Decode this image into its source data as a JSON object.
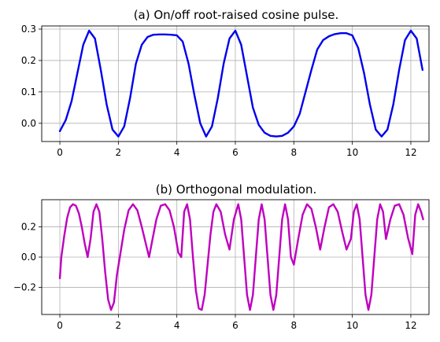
{
  "chart_data": [
    {
      "type": "line",
      "title": "(a) On/off root-raised cosine pulse.",
      "xlabel": "",
      "ylabel": "",
      "xlim": [
        -0.62,
        12.62
      ],
      "ylim": [
        -0.058,
        0.31
      ],
      "xticks": [
        0,
        2,
        4,
        6,
        8,
        10,
        12
      ],
      "yticks": [
        0.0,
        0.1,
        0.2,
        0.3
      ],
      "xtick_labels": [
        "0",
        "2",
        "4",
        "6",
        "8",
        "10",
        "12"
      ],
      "ytick_labels": [
        "0.0",
        "0.1",
        "0.2",
        "0.3"
      ],
      "grid": true,
      "color": "#0000ee",
      "series": [
        {
          "x": [
            0.0,
            0.2,
            0.4,
            0.6,
            0.8,
            1.0,
            1.2,
            1.4,
            1.6,
            1.8,
            2.0,
            2.2,
            2.4,
            2.6,
            2.8,
            3.0,
            3.2,
            3.4,
            3.6,
            3.8,
            4.0,
            4.2,
            4.4,
            4.6,
            4.8,
            5.0,
            5.2,
            5.4,
            5.6,
            5.8,
            6.0,
            6.2,
            6.4,
            6.6,
            6.8,
            7.0,
            7.2,
            7.4,
            7.6,
            7.8,
            8.0,
            8.2,
            8.4,
            8.6,
            8.8,
            9.0,
            9.2,
            9.4,
            9.6,
            9.8,
            10.0,
            10.2,
            10.4,
            10.6,
            10.8,
            11.0,
            11.2,
            11.4,
            11.6,
            11.8,
            12.0,
            12.2,
            12.4
          ],
          "y": [
            -0.025,
            0.01,
            0.07,
            0.16,
            0.25,
            0.295,
            0.27,
            0.17,
            0.06,
            -0.02,
            -0.042,
            -0.01,
            0.08,
            0.19,
            0.25,
            0.275,
            0.282,
            0.283,
            0.283,
            0.282,
            0.28,
            0.26,
            0.19,
            0.09,
            0.0,
            -0.042,
            -0.01,
            0.08,
            0.19,
            0.27,
            0.295,
            0.25,
            0.15,
            0.05,
            -0.005,
            -0.03,
            -0.04,
            -0.042,
            -0.04,
            -0.03,
            -0.01,
            0.03,
            0.1,
            0.17,
            0.235,
            0.265,
            0.277,
            0.284,
            0.287,
            0.287,
            0.28,
            0.24,
            0.16,
            0.06,
            -0.02,
            -0.042,
            -0.02,
            0.06,
            0.17,
            0.265,
            0.295,
            0.27,
            0.17
          ]
        }
      ]
    },
    {
      "type": "line",
      "title": "(b) Orthogonal modulation.",
      "xlabel": "",
      "ylabel": "",
      "xlim": [
        -0.62,
        12.62
      ],
      "ylim": [
        -0.38,
        0.38
      ],
      "xticks": [
        0,
        2,
        4,
        6,
        8,
        10,
        12
      ],
      "yticks": [
        -0.2,
        0.0,
        0.2
      ],
      "xtick_labels": [
        "0",
        "2",
        "4",
        "6",
        "8",
        "10",
        "12"
      ],
      "ytick_labels": [
        "−0.2",
        "0.0",
        "0.2"
      ],
      "grid": true,
      "color": "#bf00bf",
      "series": [
        {
          "x": [
            0.0,
            0.05,
            0.15,
            0.25,
            0.35,
            0.45,
            0.55,
            0.65,
            0.75,
            0.85,
            0.95,
            1.05,
            1.15,
            1.25,
            1.35,
            1.45,
            1.55,
            1.65,
            1.75,
            1.85,
            1.95,
            2.05,
            2.2,
            2.35,
            2.5,
            2.65,
            2.8,
            2.95,
            3.05,
            3.15,
            3.3,
            3.45,
            3.6,
            3.75,
            3.9,
            4.05,
            4.15,
            4.25,
            4.35,
            4.45,
            4.55,
            4.65,
            4.75,
            4.85,
            4.95,
            5.05,
            5.15,
            5.25,
            5.35,
            5.5,
            5.65,
            5.8,
            5.95,
            6.1,
            6.2,
            6.3,
            6.4,
            6.5,
            6.6,
            6.7,
            6.8,
            6.9,
            7.0,
            7.1,
            7.2,
            7.3,
            7.4,
            7.5,
            7.6,
            7.7,
            7.8,
            7.9,
            8.0,
            8.15,
            8.3,
            8.45,
            8.6,
            8.75,
            8.9,
            9.05,
            9.2,
            9.35,
            9.5,
            9.65,
            9.8,
            9.95,
            10.05,
            10.15,
            10.25,
            10.35,
            10.45,
            10.55,
            10.65,
            10.75,
            10.85,
            10.95,
            11.05,
            11.15,
            11.3,
            11.45,
            11.6,
            11.75,
            11.9,
            12.05,
            12.15,
            12.25,
            12.35,
            12.42
          ],
          "y": [
            -0.14,
            0.0,
            0.14,
            0.26,
            0.33,
            0.35,
            0.34,
            0.29,
            0.2,
            0.09,
            0.0,
            0.12,
            0.3,
            0.35,
            0.3,
            0.12,
            -0.1,
            -0.28,
            -0.35,
            -0.3,
            -0.12,
            0.0,
            0.18,
            0.31,
            0.35,
            0.31,
            0.2,
            0.08,
            0.0,
            0.1,
            0.25,
            0.34,
            0.35,
            0.31,
            0.2,
            0.03,
            0.0,
            0.3,
            0.35,
            0.25,
            0.0,
            -0.22,
            -0.34,
            -0.35,
            -0.25,
            -0.05,
            0.15,
            0.3,
            0.35,
            0.3,
            0.15,
            0.05,
            0.25,
            0.35,
            0.25,
            0.0,
            -0.25,
            -0.35,
            -0.25,
            0.0,
            0.25,
            0.35,
            0.25,
            0.0,
            -0.25,
            -0.35,
            -0.25,
            0.0,
            0.25,
            0.35,
            0.25,
            0.0,
            -0.05,
            0.12,
            0.28,
            0.35,
            0.32,
            0.2,
            0.05,
            0.2,
            0.33,
            0.35,
            0.3,
            0.17,
            0.05,
            0.12,
            0.3,
            0.35,
            0.25,
            0.0,
            -0.25,
            -0.35,
            -0.25,
            0.0,
            0.25,
            0.35,
            0.3,
            0.12,
            0.25,
            0.34,
            0.35,
            0.28,
            0.13,
            0.02,
            0.28,
            0.35,
            0.3,
            0.25
          ]
        }
      ]
    }
  ]
}
